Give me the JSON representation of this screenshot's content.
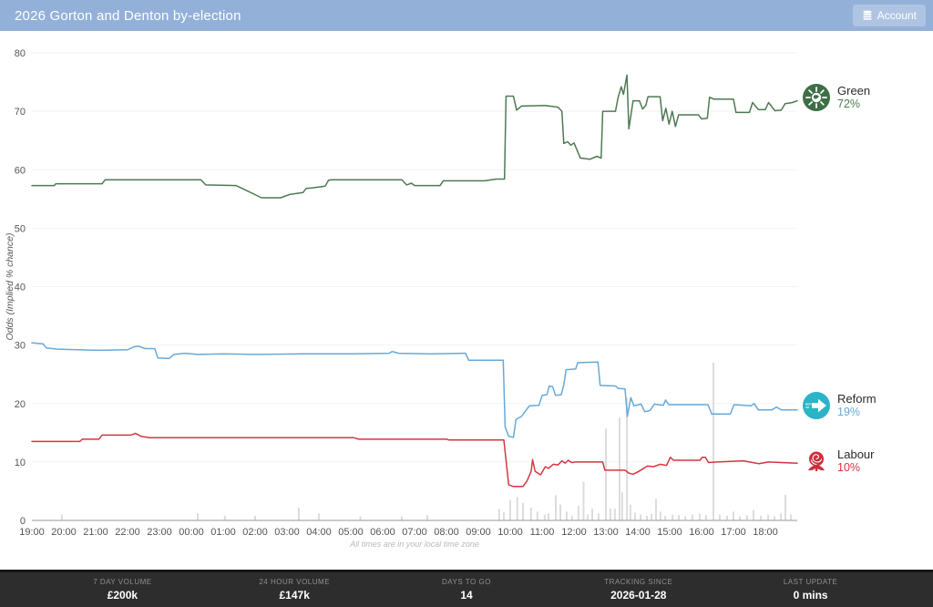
{
  "header": {
    "title": "2026 Gorton and Denton by-election",
    "account_label": "Account"
  },
  "colors": {
    "header_bg": "#93b1d8",
    "account_btn_bg": "#afc4e2",
    "footer_bg": "#2d2d2d",
    "gridline": "#f2f2f2",
    "axis_line": "#9a9a9a",
    "volume_bar": "#dcdcdc"
  },
  "chart_data": {
    "type": "line",
    "title": "",
    "ylabel": "Odds (Implied % chance)",
    "note": "All times are in your local time zone",
    "ylim": [
      0,
      80
    ],
    "yticks": [
      0,
      10,
      20,
      30,
      40,
      50,
      60,
      70,
      80
    ],
    "x_ticks": [
      "19:00",
      "20:00",
      "21:00",
      "22:00",
      "23:00",
      "00:00",
      "01:00",
      "02:00",
      "03:00",
      "04:00",
      "05:00",
      "06:00",
      "07:00",
      "08:00",
      "09:00",
      "10:00",
      "11:00",
      "12:00",
      "13:00",
      "14:00",
      "15:00",
      "16:00",
      "17:00",
      "18:00"
    ],
    "legend_position": "right",
    "grid": true,
    "series": [
      {
        "name": "Green",
        "final": "72%",
        "color": "#4e7a52",
        "icon": "green-party-icon",
        "icon_color": "#3e6e45",
        "points": [
          [
            0,
            57.3
          ],
          [
            0.7,
            57.3
          ],
          [
            0.75,
            57.6
          ],
          [
            2.2,
            57.6
          ],
          [
            2.3,
            58.3
          ],
          [
            5.3,
            58.3
          ],
          [
            5.45,
            57.4
          ],
          [
            6.4,
            57.3
          ],
          [
            6.6,
            56.8
          ],
          [
            7.2,
            55.2
          ],
          [
            7.8,
            55.2
          ],
          [
            8.1,
            55.8
          ],
          [
            8.5,
            56.1
          ],
          [
            8.6,
            56.8
          ],
          [
            8.8,
            56.9
          ],
          [
            9.2,
            57.2
          ],
          [
            9.3,
            58.2
          ],
          [
            9.4,
            58.3
          ],
          [
            11.6,
            58.3
          ],
          [
            11.75,
            57.4
          ],
          [
            11.9,
            57.7
          ],
          [
            12.0,
            57.3
          ],
          [
            12.8,
            57.3
          ],
          [
            12.9,
            58.1
          ],
          [
            14.2,
            58.1
          ],
          [
            14.55,
            58.4
          ],
          [
            14.82,
            58.4
          ],
          [
            14.87,
            72.6
          ],
          [
            15.1,
            72.6
          ],
          [
            15.2,
            70.2
          ],
          [
            15.35,
            70.9
          ],
          [
            16.1,
            71.0
          ],
          [
            16.5,
            70.7
          ],
          [
            16.62,
            70.0
          ],
          [
            16.68,
            64.5
          ],
          [
            16.8,
            64.8
          ],
          [
            16.9,
            64.2
          ],
          [
            17.0,
            64.6
          ],
          [
            17.2,
            62.0
          ],
          [
            17.5,
            61.8
          ],
          [
            17.72,
            62.3
          ],
          [
            17.85,
            62.0
          ],
          [
            17.9,
            70.0
          ],
          [
            18.3,
            70.0
          ],
          [
            18.38,
            72.3
          ],
          [
            18.48,
            74.2
          ],
          [
            18.55,
            72.9
          ],
          [
            18.66,
            76.2
          ],
          [
            18.72,
            67.0
          ],
          [
            18.85,
            71.8
          ],
          [
            19.05,
            71.8
          ],
          [
            19.15,
            70.4
          ],
          [
            19.25,
            71.0
          ],
          [
            19.32,
            72.5
          ],
          [
            19.7,
            72.5
          ],
          [
            19.78,
            68.4
          ],
          [
            19.88,
            70.5
          ],
          [
            19.98,
            67.8
          ],
          [
            20.08,
            70.0
          ],
          [
            20.18,
            67.4
          ],
          [
            20.28,
            69.4
          ],
          [
            20.9,
            69.4
          ],
          [
            21.0,
            68.7
          ],
          [
            21.18,
            68.8
          ],
          [
            21.25,
            72.4
          ],
          [
            21.38,
            72.1
          ],
          [
            22.0,
            72.1
          ],
          [
            22.08,
            69.8
          ],
          [
            22.5,
            69.8
          ],
          [
            22.6,
            71.5
          ],
          [
            22.78,
            70.3
          ],
          [
            23.0,
            70.3
          ],
          [
            23.1,
            71.5
          ],
          [
            23.3,
            70.1
          ],
          [
            23.5,
            70.2
          ],
          [
            23.62,
            71.3
          ],
          [
            23.85,
            71.5
          ],
          [
            24.0,
            71.8
          ]
        ]
      },
      {
        "name": "Reform",
        "final": "19%",
        "color": "#67a9d9",
        "icon": "reform-uk-icon",
        "icon_color": "#2cb3c7",
        "icon_text": "REFORM UK",
        "points": [
          [
            0,
            30.4
          ],
          [
            0.35,
            30.2
          ],
          [
            0.45,
            29.5
          ],
          [
            0.8,
            29.3
          ],
          [
            2.1,
            29.1
          ],
          [
            3.0,
            29.2
          ],
          [
            3.2,
            29.7
          ],
          [
            3.35,
            29.8
          ],
          [
            3.55,
            29.4
          ],
          [
            3.85,
            29.4
          ],
          [
            3.95,
            27.8
          ],
          [
            4.3,
            27.7
          ],
          [
            4.45,
            28.4
          ],
          [
            4.8,
            28.6
          ],
          [
            5.2,
            28.4
          ],
          [
            6.0,
            28.5
          ],
          [
            7.0,
            28.4
          ],
          [
            8.5,
            28.5
          ],
          [
            10.0,
            28.5
          ],
          [
            11.2,
            28.6
          ],
          [
            11.3,
            28.9
          ],
          [
            11.5,
            28.6
          ],
          [
            12.5,
            28.5
          ],
          [
            13.6,
            28.6
          ],
          [
            13.7,
            27.4
          ],
          [
            14.78,
            27.4
          ],
          [
            14.84,
            16.0
          ],
          [
            14.95,
            14.4
          ],
          [
            15.1,
            14.2
          ],
          [
            15.18,
            17.3
          ],
          [
            15.35,
            17.8
          ],
          [
            15.6,
            19.6
          ],
          [
            15.9,
            19.7
          ],
          [
            16.0,
            21.4
          ],
          [
            16.15,
            21.5
          ],
          [
            16.22,
            23.0
          ],
          [
            16.33,
            22.9
          ],
          [
            16.42,
            21.4
          ],
          [
            16.6,
            21.5
          ],
          [
            16.68,
            23.2
          ],
          [
            16.75,
            25.8
          ],
          [
            17.05,
            25.9
          ],
          [
            17.12,
            27.0
          ],
          [
            17.75,
            27.1
          ],
          [
            17.82,
            23.1
          ],
          [
            18.3,
            23.0
          ],
          [
            18.38,
            22.6
          ],
          [
            18.6,
            22.5
          ],
          [
            18.67,
            17.8
          ],
          [
            18.78,
            21.0
          ],
          [
            18.88,
            19.6
          ],
          [
            19.1,
            19.9
          ],
          [
            19.22,
            18.6
          ],
          [
            19.38,
            18.8
          ],
          [
            19.52,
            19.9
          ],
          [
            19.8,
            19.7
          ],
          [
            19.87,
            20.6
          ],
          [
            19.97,
            19.8
          ],
          [
            21.2,
            19.8
          ],
          [
            21.32,
            18.2
          ],
          [
            21.9,
            18.2
          ],
          [
            22.02,
            19.8
          ],
          [
            22.55,
            19.6
          ],
          [
            22.65,
            20.0
          ],
          [
            22.78,
            18.9
          ],
          [
            23.2,
            18.9
          ],
          [
            23.35,
            19.4
          ],
          [
            23.5,
            18.9
          ],
          [
            24.0,
            18.9
          ]
        ]
      },
      {
        "name": "Labour",
        "final": "10%",
        "color": "#d63540",
        "icon": "labour-rose-icon",
        "icon_color": "#cc2f3c",
        "points": [
          [
            0,
            13.5
          ],
          [
            1.5,
            13.5
          ],
          [
            1.58,
            13.9
          ],
          [
            2.1,
            13.9
          ],
          [
            2.2,
            14.6
          ],
          [
            3.1,
            14.6
          ],
          [
            3.25,
            14.9
          ],
          [
            3.42,
            14.4
          ],
          [
            3.7,
            14.15
          ],
          [
            10.1,
            14.15
          ],
          [
            10.25,
            13.9
          ],
          [
            13.0,
            13.9
          ],
          [
            13.08,
            13.75
          ],
          [
            14.8,
            13.75
          ],
          [
            14.95,
            6.1
          ],
          [
            15.1,
            5.8
          ],
          [
            15.4,
            5.8
          ],
          [
            15.52,
            6.7
          ],
          [
            15.62,
            7.9
          ],
          [
            15.66,
            8.5
          ],
          [
            15.7,
            10.4
          ],
          [
            15.78,
            8.4
          ],
          [
            15.95,
            7.8
          ],
          [
            16.1,
            9.2
          ],
          [
            16.2,
            8.9
          ],
          [
            16.35,
            9.6
          ],
          [
            16.5,
            9.5
          ],
          [
            16.62,
            10.2
          ],
          [
            16.72,
            9.8
          ],
          [
            16.82,
            10.3
          ],
          [
            16.92,
            9.9
          ],
          [
            17.05,
            10.0
          ],
          [
            17.9,
            10.0
          ],
          [
            17.97,
            8.6
          ],
          [
            18.6,
            8.6
          ],
          [
            18.72,
            8.1
          ],
          [
            18.85,
            7.9
          ],
          [
            19.0,
            8.3
          ],
          [
            19.3,
            9.3
          ],
          [
            19.5,
            9.2
          ],
          [
            19.7,
            9.6
          ],
          [
            19.9,
            9.4
          ],
          [
            20.02,
            10.8
          ],
          [
            20.12,
            10.3
          ],
          [
            20.95,
            10.3
          ],
          [
            21.02,
            10.8
          ],
          [
            21.12,
            10.8
          ],
          [
            21.22,
            9.9
          ],
          [
            21.5,
            10.0
          ],
          [
            22.3,
            10.2
          ],
          [
            22.6,
            9.9
          ],
          [
            22.8,
            9.7
          ],
          [
            23.1,
            10.0
          ],
          [
            23.5,
            9.9
          ],
          [
            24.0,
            9.8
          ]
        ]
      }
    ],
    "volume_bars": [
      [
        0.94,
        1
      ],
      [
        5.2,
        1.2
      ],
      [
        6.05,
        0.8
      ],
      [
        7.0,
        0.8
      ],
      [
        8.37,
        2.2
      ],
      [
        9.0,
        1.2
      ],
      [
        10.3,
        0.7
      ],
      [
        11.6,
        0.7
      ],
      [
        12.4,
        0.9
      ],
      [
        14.65,
        2
      ],
      [
        14.8,
        1.4
      ],
      [
        15.0,
        3.5
      ],
      [
        15.22,
        4
      ],
      [
        15.4,
        3
      ],
      [
        15.65,
        2.2
      ],
      [
        15.85,
        1.5
      ],
      [
        16.08,
        1
      ],
      [
        16.2,
        1.2
      ],
      [
        16.43,
        4.3
      ],
      [
        16.57,
        2.7
      ],
      [
        16.77,
        1.5
      ],
      [
        16.94,
        0.8
      ],
      [
        17.14,
        2.5
      ],
      [
        17.3,
        6.6
      ],
      [
        17.43,
        1
      ],
      [
        17.57,
        2
      ],
      [
        17.77,
        1.2
      ],
      [
        18.0,
        15.7
      ],
      [
        18.14,
        2
      ],
      [
        18.28,
        2
      ],
      [
        18.43,
        17.6
      ],
      [
        18.51,
        4.8
      ],
      [
        18.66,
        21
      ],
      [
        18.77,
        2.7
      ],
      [
        18.91,
        1.3
      ],
      [
        19.09,
        1
      ],
      [
        19.29,
        0.8
      ],
      [
        19.43,
        1.1
      ],
      [
        19.57,
        3.7
      ],
      [
        19.71,
        1.5
      ],
      [
        19.86,
        0.8
      ],
      [
        20.09,
        1
      ],
      [
        20.29,
        0.9
      ],
      [
        20.49,
        0.7
      ],
      [
        20.71,
        1
      ],
      [
        20.94,
        1.2
      ],
      [
        21.14,
        0.9
      ],
      [
        21.37,
        27
      ],
      [
        21.57,
        1
      ],
      [
        21.8,
        0.8
      ],
      [
        22.0,
        1.5
      ],
      [
        22.2,
        0.7
      ],
      [
        22.43,
        0.9
      ],
      [
        22.63,
        1.8
      ],
      [
        22.86,
        0.8
      ],
      [
        23.09,
        1
      ],
      [
        23.29,
        0.7
      ],
      [
        23.49,
        1.2
      ],
      [
        23.63,
        4.4
      ],
      [
        23.8,
        1
      ]
    ]
  },
  "footer": {
    "stats": [
      {
        "label": "7 DAY VOLUME",
        "value": "£200k"
      },
      {
        "label": "24 HOUR VOLUME",
        "value": "£147k"
      },
      {
        "label": "DAYS TO GO",
        "value": "14"
      },
      {
        "label": "TRACKING SINCE",
        "value": "2026-01-28"
      },
      {
        "label": "LAST UPDATE",
        "value": "0 mins"
      }
    ]
  }
}
